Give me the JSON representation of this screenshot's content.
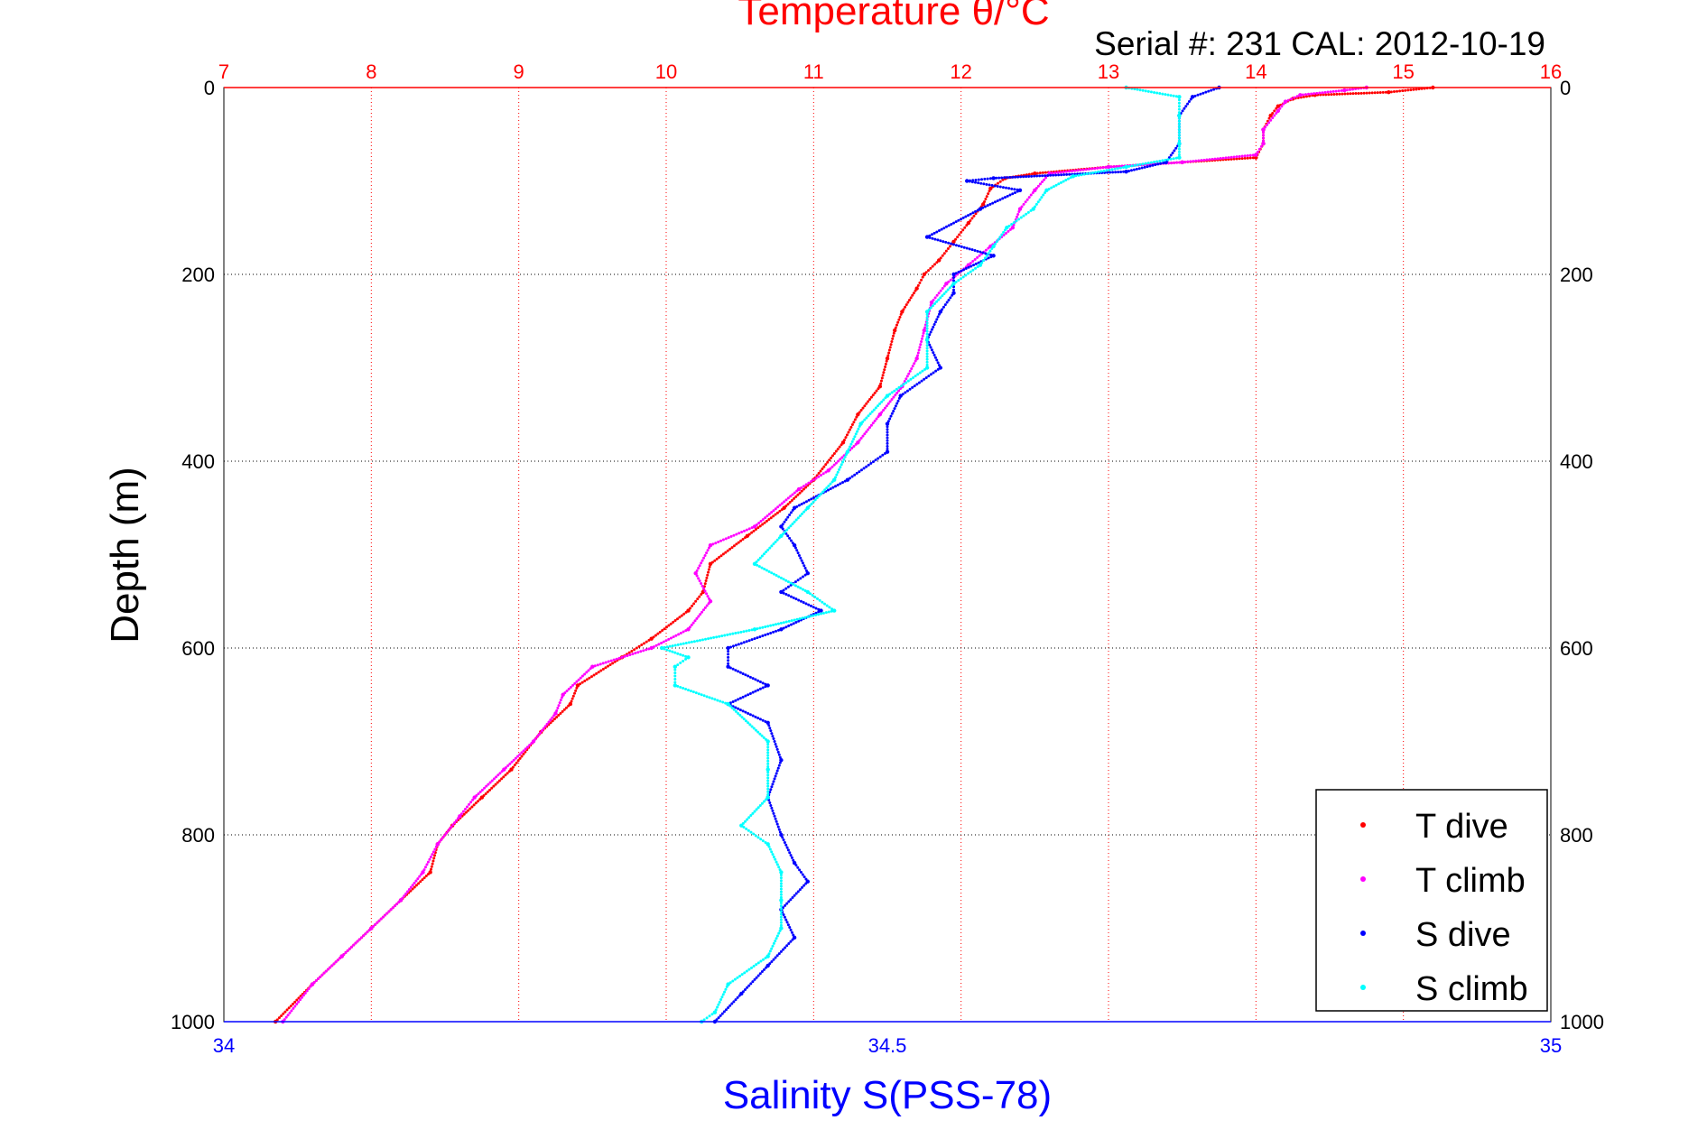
{
  "chart_data": {
    "type": "scatter",
    "title": "Temperature θ/°C",
    "subtitle": "Serial #: 231  CAL: 2012-10-19",
    "ylabel": "Depth (m)",
    "x_top_label": "Temperature θ/°C",
    "x_bottom_label": "Salinity S(PSS-78)",
    "y_range": [
      0,
      1000
    ],
    "y_reversed": true,
    "y_ticks": [
      0,
      200,
      400,
      600,
      800,
      1000
    ],
    "x_top_range": [
      7,
      16
    ],
    "x_top_ticks": [
      7,
      8,
      9,
      10,
      11,
      12,
      13,
      14,
      15,
      16
    ],
    "x_bottom_range": [
      34,
      35
    ],
    "x_bottom_ticks": [
      34,
      34.5,
      35
    ],
    "grid": true,
    "legend_position": "bottom-right",
    "colors": {
      "temperature_axis": "#ff0000",
      "salinity_axis": "#0000ff",
      "t_dive": "#ff0000",
      "t_climb": "#ff00ff",
      "s_dive": "#0000ff",
      "s_climb": "#00ffff"
    },
    "series": [
      {
        "name": "T dive",
        "axis": "temperature",
        "color": "#ff0000",
        "points": [
          [
            15.2,
            0
          ],
          [
            14.9,
            5
          ],
          [
            14.4,
            8
          ],
          [
            14.25,
            12
          ],
          [
            14.15,
            20
          ],
          [
            14.1,
            30
          ],
          [
            14.05,
            45
          ],
          [
            14.05,
            60
          ],
          [
            14.0,
            75
          ],
          [
            13.5,
            80
          ],
          [
            13.0,
            85
          ],
          [
            12.5,
            92
          ],
          [
            12.3,
            97
          ],
          [
            12.2,
            108
          ],
          [
            12.15,
            125
          ],
          [
            12.05,
            145
          ],
          [
            11.95,
            165
          ],
          [
            11.85,
            185
          ],
          [
            11.75,
            200
          ],
          [
            11.7,
            215
          ],
          [
            11.6,
            240
          ],
          [
            11.55,
            260
          ],
          [
            11.5,
            290
          ],
          [
            11.45,
            320
          ],
          [
            11.3,
            350
          ],
          [
            11.2,
            380
          ],
          [
            11.0,
            420
          ],
          [
            10.8,
            450
          ],
          [
            10.55,
            480
          ],
          [
            10.3,
            510
          ],
          [
            10.25,
            540
          ],
          [
            10.15,
            560
          ],
          [
            9.9,
            590
          ],
          [
            9.7,
            610
          ],
          [
            9.4,
            640
          ],
          [
            9.35,
            660
          ],
          [
            9.15,
            690
          ],
          [
            8.95,
            730
          ],
          [
            8.75,
            760
          ],
          [
            8.55,
            790
          ],
          [
            8.45,
            810
          ],
          [
            8.4,
            840
          ],
          [
            8.2,
            870
          ],
          [
            8.0,
            900
          ],
          [
            7.8,
            930
          ],
          [
            7.6,
            960
          ],
          [
            7.35,
            1000
          ]
        ]
      },
      {
        "name": "T climb",
        "axis": "temperature",
        "color": "#ff00ff",
        "points": [
          [
            14.75,
            0
          ],
          [
            14.6,
            3
          ],
          [
            14.3,
            8
          ],
          [
            14.2,
            15
          ],
          [
            14.15,
            25
          ],
          [
            14.05,
            45
          ],
          [
            14.05,
            60
          ],
          [
            14.0,
            72
          ],
          [
            13.5,
            80
          ],
          [
            13.0,
            85
          ],
          [
            12.6,
            92
          ],
          [
            12.5,
            110
          ],
          [
            12.4,
            130
          ],
          [
            12.35,
            150
          ],
          [
            12.2,
            170
          ],
          [
            12.05,
            190
          ],
          [
            11.9,
            210
          ],
          [
            11.8,
            230
          ],
          [
            11.75,
            260
          ],
          [
            11.7,
            290
          ],
          [
            11.6,
            320
          ],
          [
            11.45,
            350
          ],
          [
            11.3,
            380
          ],
          [
            11.1,
            410
          ],
          [
            10.9,
            430
          ],
          [
            10.6,
            470
          ],
          [
            10.3,
            490
          ],
          [
            10.2,
            520
          ],
          [
            10.3,
            550
          ],
          [
            10.15,
            580
          ],
          [
            9.9,
            600
          ],
          [
            9.5,
            620
          ],
          [
            9.3,
            650
          ],
          [
            9.25,
            670
          ],
          [
            9.1,
            700
          ],
          [
            8.9,
            730
          ],
          [
            8.7,
            760
          ],
          [
            8.6,
            780
          ],
          [
            8.45,
            810
          ],
          [
            8.35,
            840
          ],
          [
            8.2,
            870
          ],
          [
            8.0,
            900
          ],
          [
            7.8,
            930
          ],
          [
            7.6,
            960
          ],
          [
            7.4,
            1000
          ]
        ]
      },
      {
        "name": "S dive",
        "axis": "salinity",
        "color": "#0000ff",
        "points": [
          [
            34.75,
            0
          ],
          [
            34.73,
            10
          ],
          [
            34.72,
            30
          ],
          [
            34.72,
            60
          ],
          [
            34.71,
            80
          ],
          [
            34.68,
            90
          ],
          [
            34.58,
            97
          ],
          [
            34.56,
            100
          ],
          [
            34.6,
            110
          ],
          [
            34.57,
            130
          ],
          [
            34.53,
            160
          ],
          [
            34.58,
            180
          ],
          [
            34.55,
            200
          ],
          [
            34.55,
            220
          ],
          [
            34.54,
            240
          ],
          [
            34.53,
            270
          ],
          [
            34.54,
            300
          ],
          [
            34.51,
            330
          ],
          [
            34.5,
            360
          ],
          [
            34.5,
            390
          ],
          [
            34.47,
            420
          ],
          [
            34.43,
            450
          ],
          [
            34.42,
            470
          ],
          [
            34.43,
            490
          ],
          [
            34.44,
            520
          ],
          [
            34.42,
            540
          ],
          [
            34.45,
            560
          ],
          [
            34.42,
            580
          ],
          [
            34.38,
            600
          ],
          [
            34.38,
            620
          ],
          [
            34.41,
            640
          ],
          [
            34.38,
            660
          ],
          [
            34.41,
            680
          ],
          [
            34.42,
            720
          ],
          [
            34.41,
            760
          ],
          [
            34.42,
            800
          ],
          [
            34.43,
            830
          ],
          [
            34.44,
            850
          ],
          [
            34.42,
            880
          ],
          [
            34.43,
            910
          ],
          [
            34.41,
            940
          ],
          [
            34.39,
            970
          ],
          [
            34.37,
            1000
          ]
        ]
      },
      {
        "name": "S climb",
        "axis": "salinity",
        "color": "#00ffff",
        "points": [
          [
            34.68,
            0
          ],
          [
            34.72,
            10
          ],
          [
            34.72,
            30
          ],
          [
            34.72,
            60
          ],
          [
            34.72,
            75
          ],
          [
            34.68,
            85
          ],
          [
            34.64,
            95
          ],
          [
            34.62,
            110
          ],
          [
            34.61,
            130
          ],
          [
            34.59,
            150
          ],
          [
            34.58,
            170
          ],
          [
            34.57,
            190
          ],
          [
            34.55,
            210
          ],
          [
            34.53,
            240
          ],
          [
            34.53,
            270
          ],
          [
            34.53,
            300
          ],
          [
            34.5,
            330
          ],
          [
            34.48,
            360
          ],
          [
            34.47,
            390
          ],
          [
            34.46,
            420
          ],
          [
            34.44,
            450
          ],
          [
            34.42,
            480
          ],
          [
            34.4,
            510
          ],
          [
            34.44,
            540
          ],
          [
            34.46,
            560
          ],
          [
            34.4,
            580
          ],
          [
            34.33,
            600
          ],
          [
            34.35,
            610
          ],
          [
            34.34,
            620
          ],
          [
            34.34,
            640
          ],
          [
            34.38,
            660
          ],
          [
            34.41,
            700
          ],
          [
            34.41,
            730
          ],
          [
            34.41,
            760
          ],
          [
            34.39,
            790
          ],
          [
            34.41,
            810
          ],
          [
            34.42,
            840
          ],
          [
            34.42,
            870
          ],
          [
            34.42,
            900
          ],
          [
            34.41,
            930
          ],
          [
            34.38,
            960
          ],
          [
            34.37,
            990
          ],
          [
            34.36,
            1000
          ]
        ]
      }
    ]
  }
}
